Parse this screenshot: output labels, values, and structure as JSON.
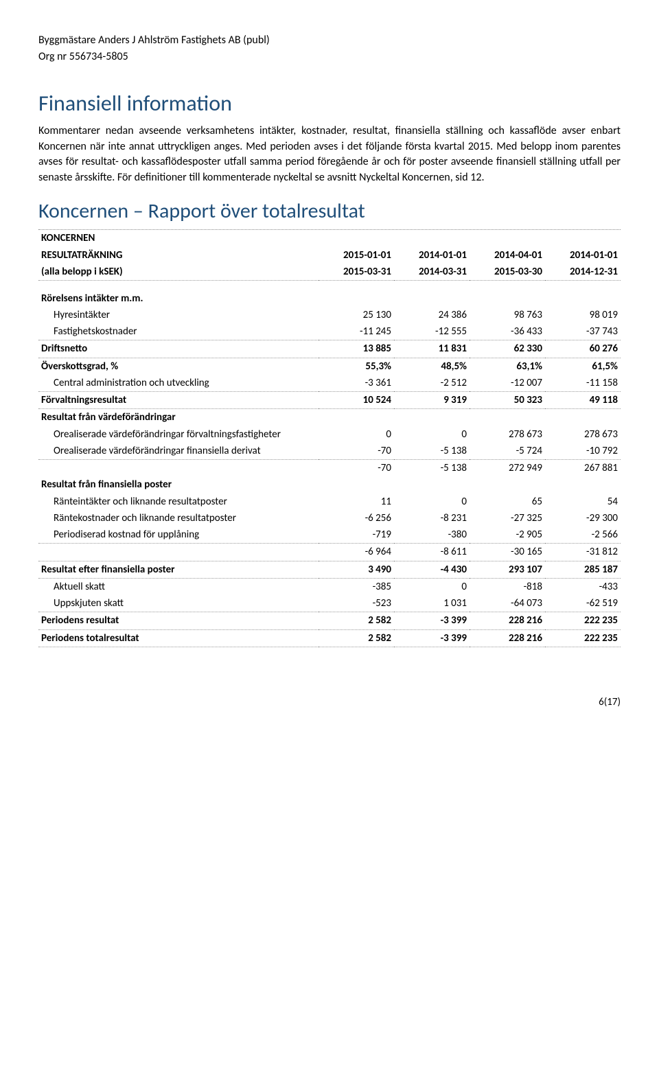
{
  "header": {
    "company": "Byggmästare Anders J Ahlström Fastighets AB (publ)",
    "org": "Org nr 556734-5805"
  },
  "title1": "Finansiell information",
  "paragraph1": "Kommentarer nedan avseende verksamhetens intäkter, kostnader, resultat, finansiella ställning och kassaflöde avser enbart Koncernen när inte annat uttryckligen anges. Med perioden avses i det följande första kvartal 2015. Med belopp inom parentes avses för resultat- och kassaflödesposter utfall samma period föregående år och för poster avseende finansiell ställning utfall per senaste årsskifte. För definitioner till kommenterade nyckeltal se avsnitt Nyckeltal Koncernen, sid 12.",
  "title2": "Koncernen – Rapport över totalresultat",
  "table": {
    "head": {
      "l1": "KONCERNEN",
      "l2": "RESULTATRÄKNING",
      "l3": "(alla belopp i kSEK)",
      "c1a": "2015-01-01",
      "c1b": "2015-03-31",
      "c2a": "2014-01-01",
      "c2b": "2014-03-31",
      "c3a": "2014-04-01",
      "c3b": "2015-03-30",
      "c4a": "2014-01-01",
      "c4b": "2014-12-31"
    },
    "rows": {
      "rorelsens": "Rörelsens intäkter m.m.",
      "hyres": {
        "label": "Hyresintäkter",
        "v": [
          "25 130",
          "24 386",
          "98 763",
          "98 019"
        ]
      },
      "fastig": {
        "label": "Fastighetskostnader",
        "v": [
          "-11 245",
          "-12 555",
          "-36 433",
          "-37 743"
        ]
      },
      "driftsnetto": {
        "label": "Driftsnetto",
        "v": [
          "13 885",
          "11 831",
          "62 330",
          "60 276"
        ]
      },
      "oversk": {
        "label": "Överskottsgrad, %",
        "v": [
          "55,3%",
          "48,5%",
          "63,1%",
          "61,5%"
        ]
      },
      "central": {
        "label": "Central administration och utveckling",
        "v": [
          "-3 361",
          "-2 512",
          "-12 007",
          "-11 158"
        ]
      },
      "forvalt": {
        "label": "Förvaltningsresultat",
        "v": [
          "10 524",
          "9 319",
          "50 323",
          "49 118"
        ]
      },
      "resvarde_head": "Resultat från värdeförändringar",
      "oreal_fast": {
        "label": "Orealiserade värdeförändringar förvaltningsfastigheter",
        "v": [
          "0",
          "0",
          "278 673",
          "278 673"
        ]
      },
      "oreal_fin": {
        "label": "Orealiserade värdeförändringar finansiella derivat",
        "v": [
          "-70",
          "-5 138",
          "-5 724",
          "-10 792"
        ]
      },
      "sum_varde": {
        "v": [
          "-70",
          "-5 138",
          "272 949",
          "267 881"
        ]
      },
      "resfin_head": "Resultat från finansiella poster",
      "ranteint": {
        "label": "Ränteintäkter och liknande resultatposter",
        "v": [
          "11",
          "0",
          "65",
          "54"
        ]
      },
      "rantekost": {
        "label": "Räntekostnader och liknande resultatposter",
        "v": [
          "-6 256",
          "-8 231",
          "-27 325",
          "-29 300"
        ]
      },
      "periodis": {
        "label": "Periodiserad kostnad för upplåning",
        "v": [
          "-719",
          "-380",
          "-2 905",
          "-2 566"
        ]
      },
      "sum_fin": {
        "v": [
          "-6 964",
          "-8 611",
          "-30 165",
          "-31 812"
        ]
      },
      "res_efter": {
        "label": "Resultat efter finansiella poster",
        "v": [
          "3 490",
          "-4 430",
          "293 107",
          "285 187"
        ]
      },
      "akt_skatt": {
        "label": "Aktuell skatt",
        "v": [
          "-385",
          "0",
          "-818",
          "-433"
        ]
      },
      "upp_skatt": {
        "label": "Uppskjuten skatt",
        "v": [
          "-523",
          "1 031",
          "-64 073",
          "-62 519"
        ]
      },
      "per_res": {
        "label": "Periodens resultat",
        "v": [
          "2 582",
          "-3 399",
          "228 216",
          "222 235"
        ]
      },
      "per_total": {
        "label": "Periodens totalresultat",
        "v": [
          "2 582",
          "-3 399",
          "228 216",
          "222 235"
        ]
      }
    }
  },
  "footer": "6(17)"
}
